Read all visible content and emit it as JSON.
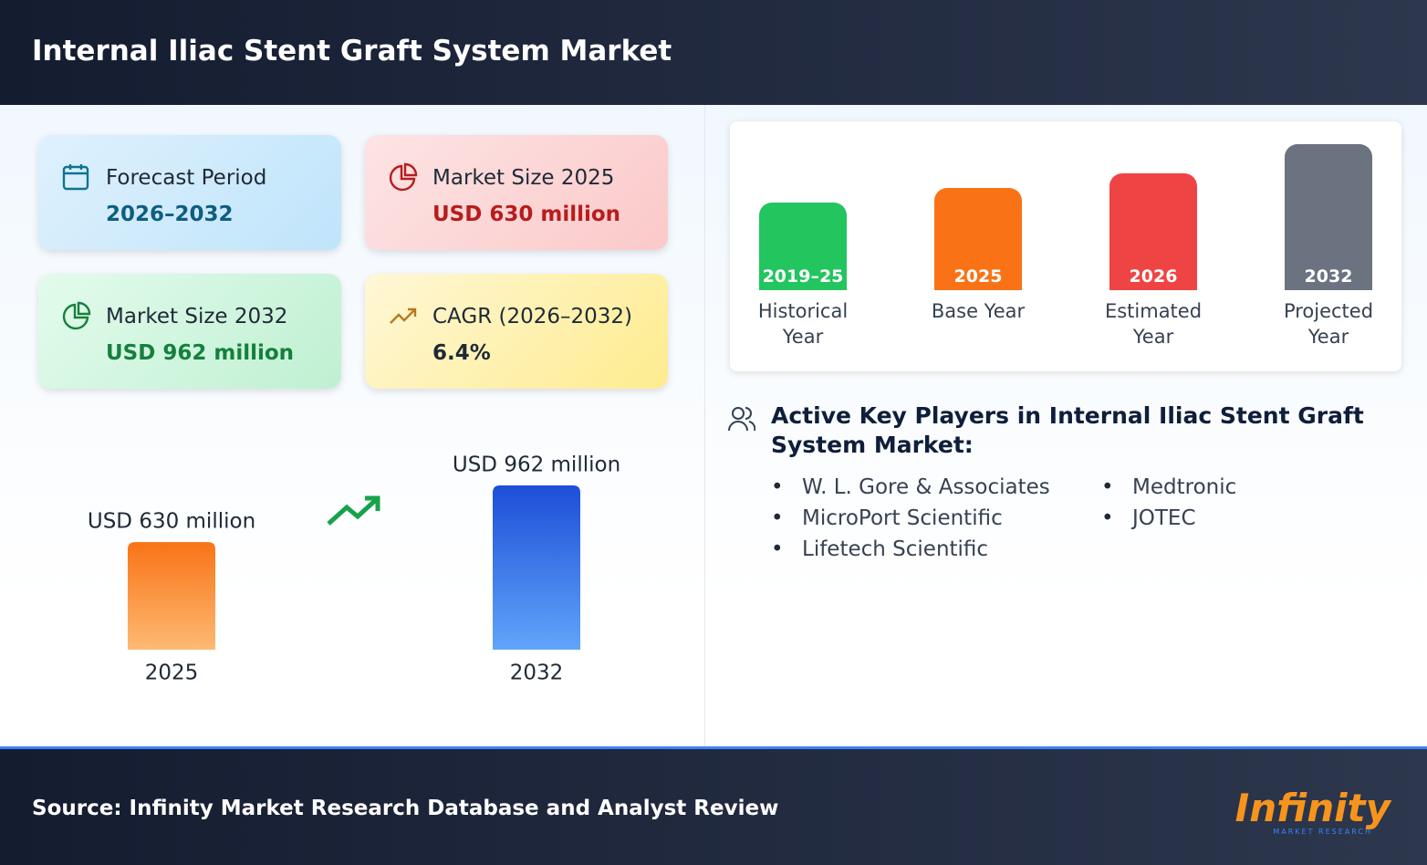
{
  "header": {
    "title": "Internal Iliac Stent Graft System Market"
  },
  "cards": [
    {
      "label": "Forecast Period",
      "value": "2026–2032"
    },
    {
      "label": "Market Size 2025",
      "value": "USD 630 million"
    },
    {
      "label": "Market Size 2032",
      "value": "USD 962 million"
    },
    {
      "label": "CAGR (2026–2032)",
      "value": "6.4%"
    }
  ],
  "chart_data": {
    "type": "bar",
    "categories": [
      "2025",
      "2032"
    ],
    "values": [
      630,
      962
    ],
    "value_labels": [
      "USD 630 million",
      "USD 962 million"
    ],
    "colors": [
      [
        "#f97316",
        "#fdba74"
      ],
      [
        "#1d4ed8",
        "#60a5fa"
      ]
    ]
  },
  "timeline": [
    {
      "year": "2019–25",
      "label": "Historical Year",
      "color": "#22c55e"
    },
    {
      "year": "2025",
      "label": "Base Year",
      "color": "#f97316"
    },
    {
      "year": "2026",
      "label": "Estimated Year",
      "color": "#ef4444"
    },
    {
      "year": "2032",
      "label": "Projected Year",
      "color": "#6b7280"
    }
  ],
  "players": {
    "title": "Active Key Players in Internal Iliac Stent Graft System Market:",
    "items": [
      "W. L. Gore & Associates",
      "MicroPort Scientific",
      "Lifetech Scientific",
      "Medtronic",
      "JOTEC"
    ]
  },
  "footer": {
    "source": "Source: Infinity Market Research Database and Analyst Review",
    "logo": "Infinity",
    "logo_sub": "MARKET RESEARCH"
  }
}
